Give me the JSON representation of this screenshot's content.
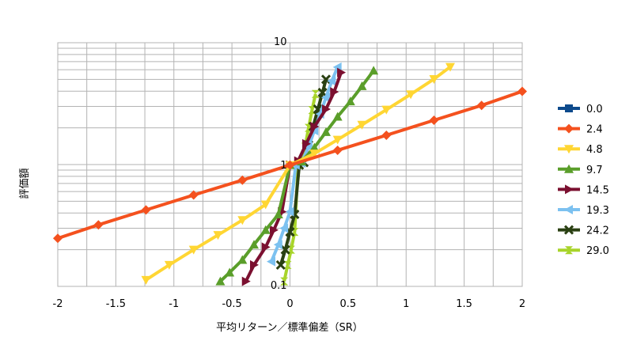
{
  "chart_data": {
    "type": "line",
    "title": "",
    "xlabel": "平均リターン／標準偏差（SR）",
    "ylabel": "評価額",
    "xlim": [
      -2,
      2
    ],
    "ylim": [
      0.1,
      10
    ],
    "yscale": "log",
    "x_ticks": [
      "-2",
      "-1.5",
      "-1",
      "-0.5",
      "0",
      "0.5",
      "1",
      "1.5",
      "2"
    ],
    "y_ticks": [
      "0.1",
      "1",
      "10"
    ],
    "grid": true,
    "legend_position": "right",
    "series": [
      {
        "name": "0.0",
        "color": "#0d4a8c",
        "marker": "square",
        "x": [],
        "y": []
      },
      {
        "name": "2.4",
        "color": "#f4511e",
        "marker": "diamond",
        "x": [
          -2,
          -1.65,
          -1.24,
          -0.83,
          -0.41,
          0,
          0.41,
          0.83,
          1.24,
          1.65,
          2
        ],
        "y": [
          0.248,
          0.32,
          0.424,
          0.562,
          0.745,
          0.99,
          1.31,
          1.74,
          2.31,
          3.06,
          3.99
        ]
      },
      {
        "name": "4.8",
        "color": "#ffd633",
        "marker": "triangle-down",
        "x": [
          -1.24,
          -1.04,
          -0.83,
          -0.62,
          -0.41,
          -0.21,
          0,
          0.21,
          0.41,
          0.62,
          0.83,
          1.04,
          1.24,
          1.38
        ],
        "y": [
          0.113,
          0.15,
          0.2,
          0.264,
          0.35,
          0.47,
          0.989,
          1.23,
          1.6,
          2.12,
          2.82,
          3.77,
          5.03,
          6.33
        ]
      },
      {
        "name": "9.7",
        "color": "#5a9e2a",
        "marker": "triangle-up",
        "x": [
          -0.6,
          -0.52,
          -0.41,
          -0.31,
          -0.21,
          -0.1,
          0,
          0.1,
          0.21,
          0.31,
          0.41,
          0.52,
          0.62,
          0.72
        ],
        "y": [
          0.11,
          0.13,
          0.165,
          0.22,
          0.29,
          0.39,
          0.99,
          1.06,
          1.38,
          1.85,
          2.47,
          3.3,
          4.4,
          5.9
        ]
      },
      {
        "name": "14.5",
        "color": "#7b1030",
        "marker": "triangle-right",
        "x": [
          -0.38,
          -0.31,
          -0.21,
          -0.14,
          -0.07,
          0,
          0.07,
          0.14,
          0.21,
          0.31,
          0.38,
          0.44
        ],
        "y": [
          0.11,
          0.15,
          0.21,
          0.29,
          0.41,
          0.99,
          1.07,
          1.48,
          2.05,
          2.85,
          3.95,
          5.7
        ]
      },
      {
        "name": "19.3",
        "color": "#7cc1f0",
        "marker": "triangle-left",
        "x": [
          -0.16,
          -0.1,
          -0.05,
          0,
          0.05,
          0.1,
          0.16,
          0.21,
          0.26,
          0.31,
          0.36,
          0.41
        ],
        "y": [
          0.16,
          0.22,
          0.3,
          0.41,
          0.99,
          1.03,
          1.4,
          1.9,
          2.6,
          3.55,
          4.85,
          6.3
        ]
      },
      {
        "name": "24.2",
        "color": "#2a4012",
        "marker": "x",
        "x": [
          -0.08,
          -0.04,
          0,
          0.04,
          0.08,
          0.12,
          0.16,
          0.2,
          0.24,
          0.28,
          0.31
        ],
        "y": [
          0.15,
          0.2,
          0.28,
          0.39,
          0.99,
          1.04,
          1.45,
          2.05,
          2.85,
          3.9,
          5.0
        ]
      },
      {
        "name": "29.0",
        "color": "#a8d42a",
        "marker": "hourglass",
        "x": [
          -0.05,
          -0.02,
          0.01,
          0.04,
          0.07,
          0.1,
          0.13,
          0.16,
          0.19,
          0.22
        ],
        "y": [
          0.11,
          0.15,
          0.2,
          0.28,
          0.99,
          1.05,
          1.4,
          2.0,
          2.8,
          3.8
        ]
      }
    ]
  }
}
